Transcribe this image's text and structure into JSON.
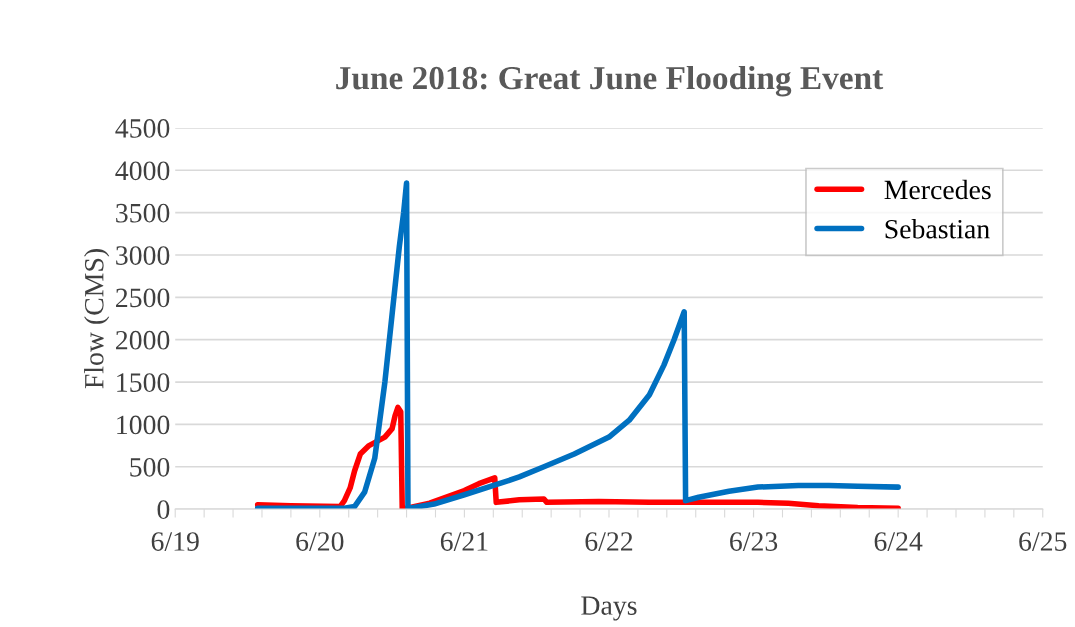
{
  "chart_data": {
    "type": "line",
    "title": "June 2018: Great June Flooding Event",
    "xlabel": "Days",
    "ylabel": "Flow (CMS)",
    "xlim": [
      "2018-06-19",
      "2018-06-25"
    ],
    "ylim": [
      0,
      4500
    ],
    "xticks": [
      {
        "value": "2018-06-19",
        "label": "6/19"
      },
      {
        "value": "2018-06-19T04:48",
        "label": null
      },
      {
        "value": "2018-06-19T09:36",
        "label": null
      },
      {
        "value": "2018-06-19T14:24",
        "label": null
      },
      {
        "value": "2018-06-19T19:12",
        "label": null
      },
      {
        "value": "2018-06-20",
        "label": "6/20"
      },
      {
        "value": "2018-06-20T04:48",
        "label": null
      },
      {
        "value": "2018-06-20T09:36",
        "label": null
      },
      {
        "value": "2018-06-20T14:24",
        "label": null
      },
      {
        "value": "2018-06-20T19:12",
        "label": null
      },
      {
        "value": "2018-06-21",
        "label": "6/21"
      },
      {
        "value": "2018-06-21T04:48",
        "label": null
      },
      {
        "value": "2018-06-21T09:36",
        "label": null
      },
      {
        "value": "2018-06-21T14:24",
        "label": null
      },
      {
        "value": "2018-06-21T19:12",
        "label": null
      },
      {
        "value": "2018-06-22",
        "label": "6/22"
      },
      {
        "value": "2018-06-22T04:48",
        "label": null
      },
      {
        "value": "2018-06-22T09:36",
        "label": null
      },
      {
        "value": "2018-06-22T14:24",
        "label": null
      },
      {
        "value": "2018-06-22T19:12",
        "label": null
      },
      {
        "value": "2018-06-23",
        "label": "6/23"
      },
      {
        "value": "2018-06-23T04:48",
        "label": null
      },
      {
        "value": "2018-06-23T09:36",
        "label": null
      },
      {
        "value": "2018-06-23T14:24",
        "label": null
      },
      {
        "value": "2018-06-23T19:12",
        "label": null
      },
      {
        "value": "2018-06-24",
        "label": "6/24"
      },
      {
        "value": "2018-06-24T04:48",
        "label": null
      },
      {
        "value": "2018-06-24T09:36",
        "label": null
      },
      {
        "value": "2018-06-24T14:24",
        "label": null
      },
      {
        "value": "2018-06-24T19:12",
        "label": null
      },
      {
        "value": "2018-06-25",
        "label": "6/25"
      }
    ],
    "yticks": [
      0,
      500,
      1000,
      1500,
      2000,
      2500,
      3000,
      3500,
      4000,
      4500
    ],
    "grid": "y",
    "legend": "top right",
    "marker": "none",
    "line_style": "solid",
    "series": [
      {
        "name": "Mercedes",
        "color": "#ff0000",
        "x": [
          "2018-06-19T13:41",
          "2018-06-19T19:12",
          "2018-06-20T03:22",
          "2018-06-20T04:05",
          "2018-06-20T05:02",
          "2018-06-20T05:46",
          "2018-06-20T06:43",
          "2018-06-20T08:10",
          "2018-06-20T10:48",
          "2018-06-20T12:00",
          "2018-06-20T12:29",
          "2018-06-20T12:58",
          "2018-06-20T13:26",
          "2018-06-20T13:41",
          "2018-06-20T18:14",
          "2018-06-21T00:00",
          "2018-06-21T02:24",
          "2018-06-21T05:02",
          "2018-06-21T05:17",
          "2018-06-21T09:07",
          "2018-06-21T13:12",
          "2018-06-21T13:41",
          "2018-06-21T22:19",
          "2018-06-22T06:43",
          "2018-06-22T14:53",
          "2018-06-23T00:43",
          "2018-06-23T05:46",
          "2018-06-23T10:48",
          "2018-06-23T17:17",
          "2018-06-24T00:00"
        ],
        "values": [
          50,
          40,
          30,
          100,
          250,
          450,
          650,
          750,
          850,
          950,
          1100,
          1200,
          1150,
          0,
          70,
          220,
          300,
          370,
          80,
          110,
          120,
          80,
          90,
          80,
          80,
          80,
          70,
          40,
          20,
          10
        ]
      },
      {
        "name": "Sebastian",
        "color": "#0070c0",
        "x": [
          "2018-06-19T13:41",
          "2018-06-20T04:05",
          "2018-06-20T05:46",
          "2018-06-20T07:26",
          "2018-06-20T09:07",
          "2018-06-20T10:48",
          "2018-06-20T12:00",
          "2018-06-20T13:12",
          "2018-06-20T13:55",
          "2018-06-20T14:24",
          "2018-06-20T14:38",
          "2018-06-20T14:53",
          "2018-06-20T18:58",
          "2018-06-21T00:00",
          "2018-06-21T05:46",
          "2018-06-21T09:07",
          "2018-06-21T13:12",
          "2018-06-21T18:14",
          "2018-06-22T00:00",
          "2018-06-22T03:22",
          "2018-06-22T06:43",
          "2018-06-22T09:07",
          "2018-06-22T10:48",
          "2018-06-22T12:29",
          "2018-06-22T12:43",
          "2018-06-22T14:53",
          "2018-06-22T19:55",
          "2018-06-23T00:43",
          "2018-06-23T07:26",
          "2018-06-23T12:29",
          "2018-06-23T17:17",
          "2018-06-24T00:00"
        ],
        "values": [
          10,
          10,
          30,
          200,
          600,
          1500,
          2300,
          3100,
          3500,
          3850,
          0,
          10,
          60,
          170,
          300,
          380,
          500,
          650,
          850,
          1050,
          1350,
          1700,
          2000,
          2330,
          100,
          140,
          210,
          260,
          280,
          280,
          270,
          260
        ]
      }
    ]
  }
}
